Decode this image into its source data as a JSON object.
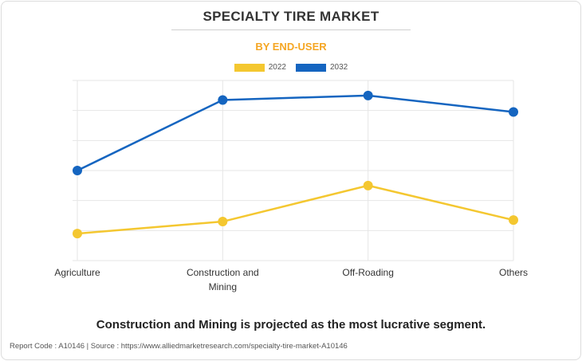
{
  "header": {
    "title": "SPECIALTY TIRE MARKET",
    "subtitle": "BY END-USER"
  },
  "colors": {
    "series_2022": "#f4c730",
    "series_2032": "#1565c0",
    "subtitle": "#f5a623",
    "grid": "#e6e6e6"
  },
  "chart_data": {
    "type": "line",
    "categories": [
      "Agriculture",
      "Construction and Mining",
      "Off-Roading",
      "Others"
    ],
    "series": [
      {
        "name": "2022",
        "values": [
          0.9,
          1.3,
          2.5,
          1.35
        ]
      },
      {
        "name": "2032",
        "values": [
          3.0,
          5.35,
          5.5,
          4.95
        ]
      }
    ],
    "ylim": [
      0,
      6
    ],
    "grid": true,
    "legend_position": "top-center",
    "y_tick_labels": false
  },
  "footer": {
    "message": "Construction and Mining is projected as the most lucrative segment.",
    "source": "Report Code : A10146  |  Source : https://www.alliedmarketresearch.com/specialty-tire-market-A10146"
  }
}
